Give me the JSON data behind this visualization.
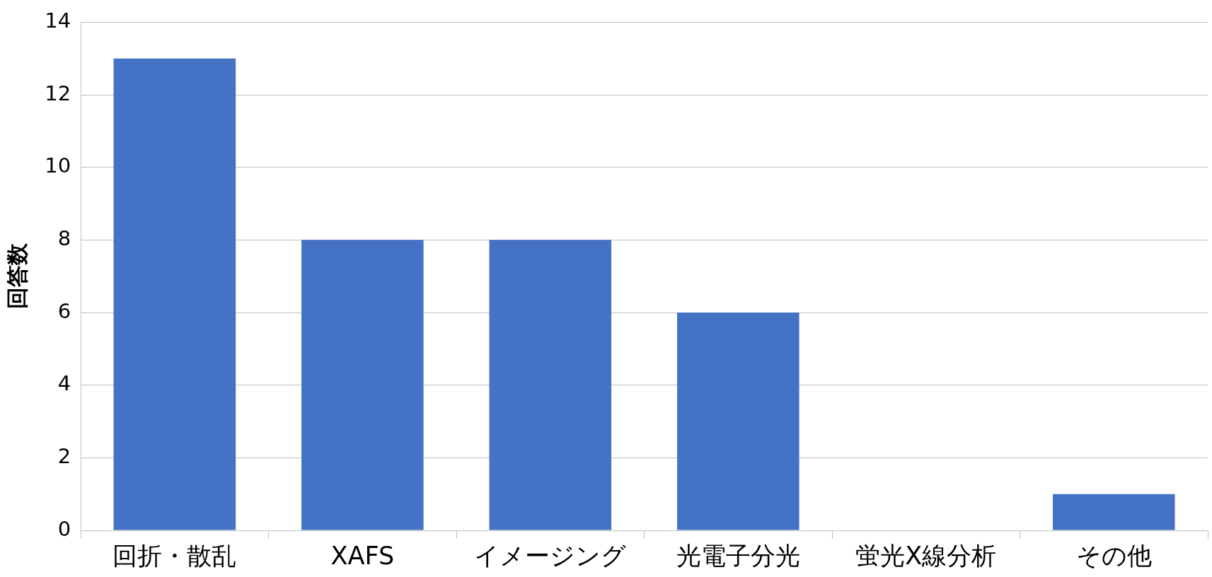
{
  "chart_data": {
    "type": "bar",
    "ylabel": "回答数",
    "categories": [
      "回折・散乱",
      "XAFS",
      "イメージング",
      "光電子分光",
      "蛍光X線分析",
      "その他"
    ],
    "values": [
      13,
      8,
      8,
      6,
      0,
      1
    ],
    "color": "#4472c4",
    "ylim": [
      0,
      14
    ],
    "yticks": [
      0,
      2,
      4,
      6,
      8,
      10,
      12,
      14
    ],
    "grid": "y"
  }
}
